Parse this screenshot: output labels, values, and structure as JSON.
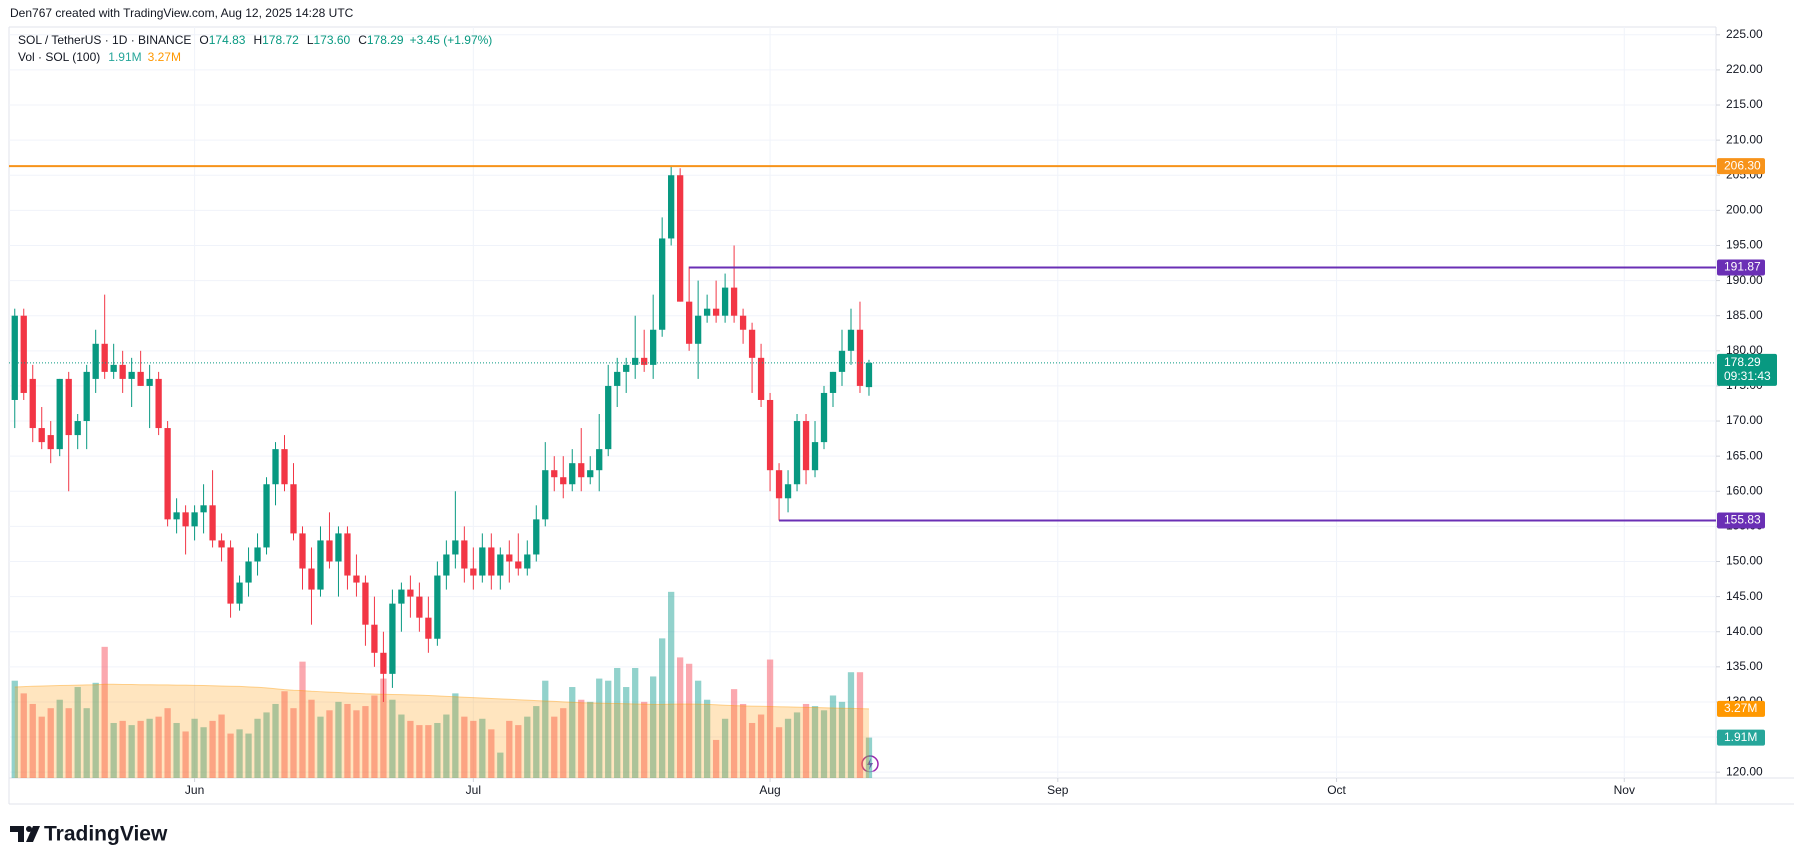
{
  "header": {
    "text": "Den767 created with TradingView.com, Aug 12, 2025 14:28 UTC"
  },
  "footer": {
    "logo": "TradingView"
  },
  "chart_data": {
    "type": "candlestick",
    "title": "SOL / TetherUS · 1D · BINANCE",
    "ohlc_letters": [
      "O",
      "H",
      "L",
      "C"
    ],
    "last_ohlc_labels": [
      "174.83",
      "178.72",
      "173.60",
      "178.29"
    ],
    "change": "+3.45 (+1.97%)",
    "x": [
      0,
      1,
      2,
      3,
      4,
      5,
      6,
      7,
      8,
      9,
      10,
      11,
      12,
      13,
      14,
      15,
      16,
      17,
      18,
      19,
      20,
      21,
      22,
      23,
      24,
      25,
      26,
      27,
      28,
      29,
      30,
      31,
      32,
      33,
      34,
      35,
      36,
      37,
      38,
      39,
      40,
      41,
      42,
      43,
      44,
      45,
      46,
      47,
      48,
      49,
      50,
      51,
      52,
      53,
      54,
      55,
      56,
      57,
      58,
      59,
      60,
      61,
      62,
      63,
      64,
      65,
      66,
      67,
      68,
      69,
      70,
      71,
      72,
      73,
      74,
      75,
      76,
      77,
      78,
      79,
      80,
      81,
      82,
      83,
      84,
      85,
      86,
      87,
      88,
      89,
      90,
      91,
      92,
      93,
      94,
      95
    ],
    "open": [
      173,
      185,
      176,
      169,
      168,
      166,
      176,
      168,
      170,
      176,
      181,
      177,
      178,
      176,
      177,
      175,
      176,
      169,
      156,
      157,
      155,
      157,
      158,
      153,
      152,
      144,
      147,
      150,
      152,
      161,
      166,
      161,
      154,
      149,
      146,
      153,
      150,
      154,
      148,
      147,
      141,
      137,
      134,
      144,
      146,
      145,
      142,
      139,
      148,
      151,
      153,
      149,
      148,
      152,
      148,
      151,
      150,
      149,
      151,
      156,
      163,
      162,
      161,
      164,
      162,
      163,
      166,
      175,
      177,
      178,
      179,
      178,
      183,
      196,
      205,
      187,
      181,
      185,
      186,
      185,
      189,
      185,
      183,
      179,
      173,
      163,
      159,
      161,
      170,
      163,
      167,
      174,
      177,
      180,
      183,
      174.83
    ],
    "high": [
      186,
      186,
      178,
      172,
      170,
      176,
      177,
      171,
      178,
      183,
      188,
      181,
      180,
      179,
      180,
      178,
      177,
      170,
      159,
      158,
      158,
      161,
      163,
      154,
      153,
      148,
      152,
      154,
      162,
      167,
      168,
      164,
      155,
      152,
      155,
      157,
      155,
      155,
      151,
      148,
      145,
      140,
      146,
      147,
      148,
      147,
      145,
      150,
      153,
      160,
      155,
      152,
      154,
      154,
      152,
      153,
      154,
      153,
      158,
      167,
      165,
      165,
      166,
      169,
      165,
      171,
      178,
      179,
      179,
      185,
      183,
      188,
      199,
      206.3,
      206,
      192,
      190,
      188,
      190,
      191,
      195,
      186,
      184,
      181,
      174,
      164,
      163,
      171,
      171,
      170,
      175,
      177,
      183,
      186,
      187,
      178.72
    ],
    "low": [
      169,
      173,
      167,
      166,
      164,
      165,
      160,
      166,
      166,
      174,
      176,
      176,
      174,
      172,
      175,
      169,
      168,
      155,
      154,
      151,
      153,
      154,
      152,
      150,
      142,
      143,
      145,
      148,
      151,
      158,
      160,
      153,
      146,
      141,
      145,
      149,
      145,
      146,
      145,
      138,
      135,
      130,
      132,
      140,
      142,
      140,
      137,
      138,
      146,
      149,
      147,
      146,
      147,
      146,
      146,
      147,
      148,
      148,
      150,
      155,
      160,
      159,
      160,
      160,
      161,
      160,
      165,
      172,
      174,
      176,
      177,
      176,
      182,
      195,
      187,
      180,
      176,
      184,
      184,
      184,
      184,
      181,
      174,
      172,
      160,
      155.83,
      157,
      160,
      161,
      162,
      166,
      172,
      175,
      178,
      174,
      173.6
    ],
    "close": [
      185,
      174,
      169,
      167,
      166,
      176,
      168,
      170,
      177,
      181,
      177,
      178,
      176,
      177,
      175,
      176,
      169,
      156,
      157,
      155,
      157,
      158,
      153,
      152,
      144,
      147,
      150,
      152,
      161,
      166,
      161,
      154,
      149,
      146,
      153,
      150,
      154,
      148,
      147,
      141,
      137,
      134,
      144,
      146,
      145,
      142,
      139,
      148,
      151,
      153,
      149,
      148,
      152,
      148,
      151,
      150,
      149,
      151,
      156,
      163,
      162,
      161,
      164,
      162,
      163,
      166,
      175,
      177,
      178,
      179,
      178,
      183,
      196,
      205,
      187,
      181,
      185,
      186,
      185,
      189,
      185,
      183,
      179,
      173,
      163,
      159,
      161,
      170,
      163,
      167,
      174,
      177,
      180,
      183,
      175,
      178.29
    ],
    "up_color": "#089981",
    "down_color": "#f23645",
    "xlim": [
      -0.64,
      189.2
    ],
    "xticks": [
      {
        "value": 20,
        "label": "Jun"
      },
      {
        "value": 51,
        "label": "Jul"
      },
      {
        "value": 84,
        "label": "Aug"
      },
      {
        "value": 116,
        "label": "Sep"
      },
      {
        "value": 147,
        "label": "Oct"
      },
      {
        "value": 179,
        "label": "Nov"
      }
    ],
    "ylim": [
      119.17,
      226.11
    ],
    "yticks": [
      {
        "value": 120,
        "label": "120.00"
      },
      {
        "value": 125,
        "label": "125.00"
      },
      {
        "value": 130,
        "label": "130.00"
      },
      {
        "value": 135,
        "label": "135.00"
      },
      {
        "value": 140,
        "label": "140.00"
      },
      {
        "value": 145,
        "label": "145.00"
      },
      {
        "value": 150,
        "label": "150.00"
      },
      {
        "value": 155,
        "label": "155.00"
      },
      {
        "value": 160,
        "label": "160.00"
      },
      {
        "value": 165,
        "label": "165.00"
      },
      {
        "value": 170,
        "label": "170.00"
      },
      {
        "value": 175,
        "label": "175.00"
      },
      {
        "value": 180,
        "label": "180.00"
      },
      {
        "value": 185,
        "label": "185.00"
      },
      {
        "value": 190,
        "label": "190.00"
      },
      {
        "value": 195,
        "label": "195.00"
      },
      {
        "value": 200,
        "label": "200.00"
      },
      {
        "value": 205,
        "label": "205.00"
      },
      {
        "value": 210,
        "label": "210.00"
      },
      {
        "value": 215,
        "label": "215.00"
      },
      {
        "value": 220,
        "label": "220.00"
      },
      {
        "value": 225,
        "label": "225.00"
      }
    ],
    "grid": true,
    "volume": {
      "name": "Vol · SOL (100)",
      "vlim": [
        0,
        35.5
      ],
      "up_color": "#26a69a",
      "down_color": "#f7525f",
      "values": [
        4.6,
        4.0,
        3.5,
        2.9,
        3.3,
        3.7,
        3.3,
        4.3,
        3.3,
        4.5,
        6.2,
        2.6,
        2.7,
        2.5,
        2.7,
        2.8,
        2.9,
        3.3,
        2.6,
        2.2,
        2.8,
        2.4,
        2.7,
        3.0,
        2.1,
        2.3,
        2.1,
        2.8,
        3.1,
        3.5,
        4.1,
        3.3,
        5.5,
        3.7,
        2.9,
        3.2,
        3.6,
        3.5,
        3.2,
        3.4,
        3.9,
        4.7,
        3.7,
        3.0,
        2.7,
        2.5,
        2.5,
        2.6,
        3.0,
        4.0,
        2.9,
        2.7,
        2.8,
        2.3,
        1.2,
        2.7,
        2.5,
        2.9,
        3.4,
        4.6,
        2.9,
        3.3,
        4.3,
        3.7,
        3.6,
        4.7,
        4.6,
        5.2,
        4.3,
        5.2,
        3.6,
        4.8,
        6.6,
        8.8,
        5.7,
        5.4,
        4.6,
        3.7,
        1.8,
        2.8,
        4.2,
        3.5,
        2.6,
        3.0,
        5.6,
        2.4,
        2.8,
        3.1,
        3.5,
        3.4,
        3.2,
        3.9,
        3.6,
        5.0,
        5.0,
        1.91
      ],
      "last_label": "1.91M",
      "ma": {
        "color": "#ff9800",
        "values": [
          4.3,
          4.32,
          4.34,
          4.35,
          4.36,
          4.37,
          4.38,
          4.39,
          4.4,
          4.41,
          4.43,
          4.43,
          4.42,
          4.42,
          4.41,
          4.41,
          4.4,
          4.4,
          4.39,
          4.39,
          4.38,
          4.37,
          4.36,
          4.35,
          4.34,
          4.33,
          4.31,
          4.29,
          4.26,
          4.22,
          4.18,
          4.15,
          4.13,
          4.1,
          4.08,
          4.06,
          4.04,
          4.02,
          4.0,
          3.98,
          3.97,
          3.96,
          3.95,
          3.94,
          3.93,
          3.92,
          3.9,
          3.88,
          3.86,
          3.84,
          3.82,
          3.8,
          3.78,
          3.76,
          3.74,
          3.72,
          3.7,
          3.68,
          3.66,
          3.64,
          3.62,
          3.6,
          3.58,
          3.56,
          3.55,
          3.54,
          3.53,
          3.52,
          3.51,
          3.5,
          3.49,
          3.48,
          3.48,
          3.49,
          3.5,
          3.5,
          3.49,
          3.48,
          3.46,
          3.44,
          3.42,
          3.41,
          3.4,
          3.39,
          3.38,
          3.37,
          3.36,
          3.35,
          3.34,
          3.33,
          3.32,
          3.31,
          3.3,
          3.29,
          3.28,
          3.27
        ],
        "last_label": "3.27M"
      }
    },
    "levels": [
      {
        "value": 206.3,
        "label": "206.30",
        "color": "#f7931a"
      },
      {
        "value": 191.87,
        "label": "191.87",
        "start": 75,
        "color": "#6a2fb5"
      },
      {
        "value": 155.83,
        "label": "155.83",
        "start": 85,
        "color": "#6a2fb5"
      }
    ],
    "last_price": {
      "countdown": "09:31:43",
      "color": "#089981"
    }
  }
}
